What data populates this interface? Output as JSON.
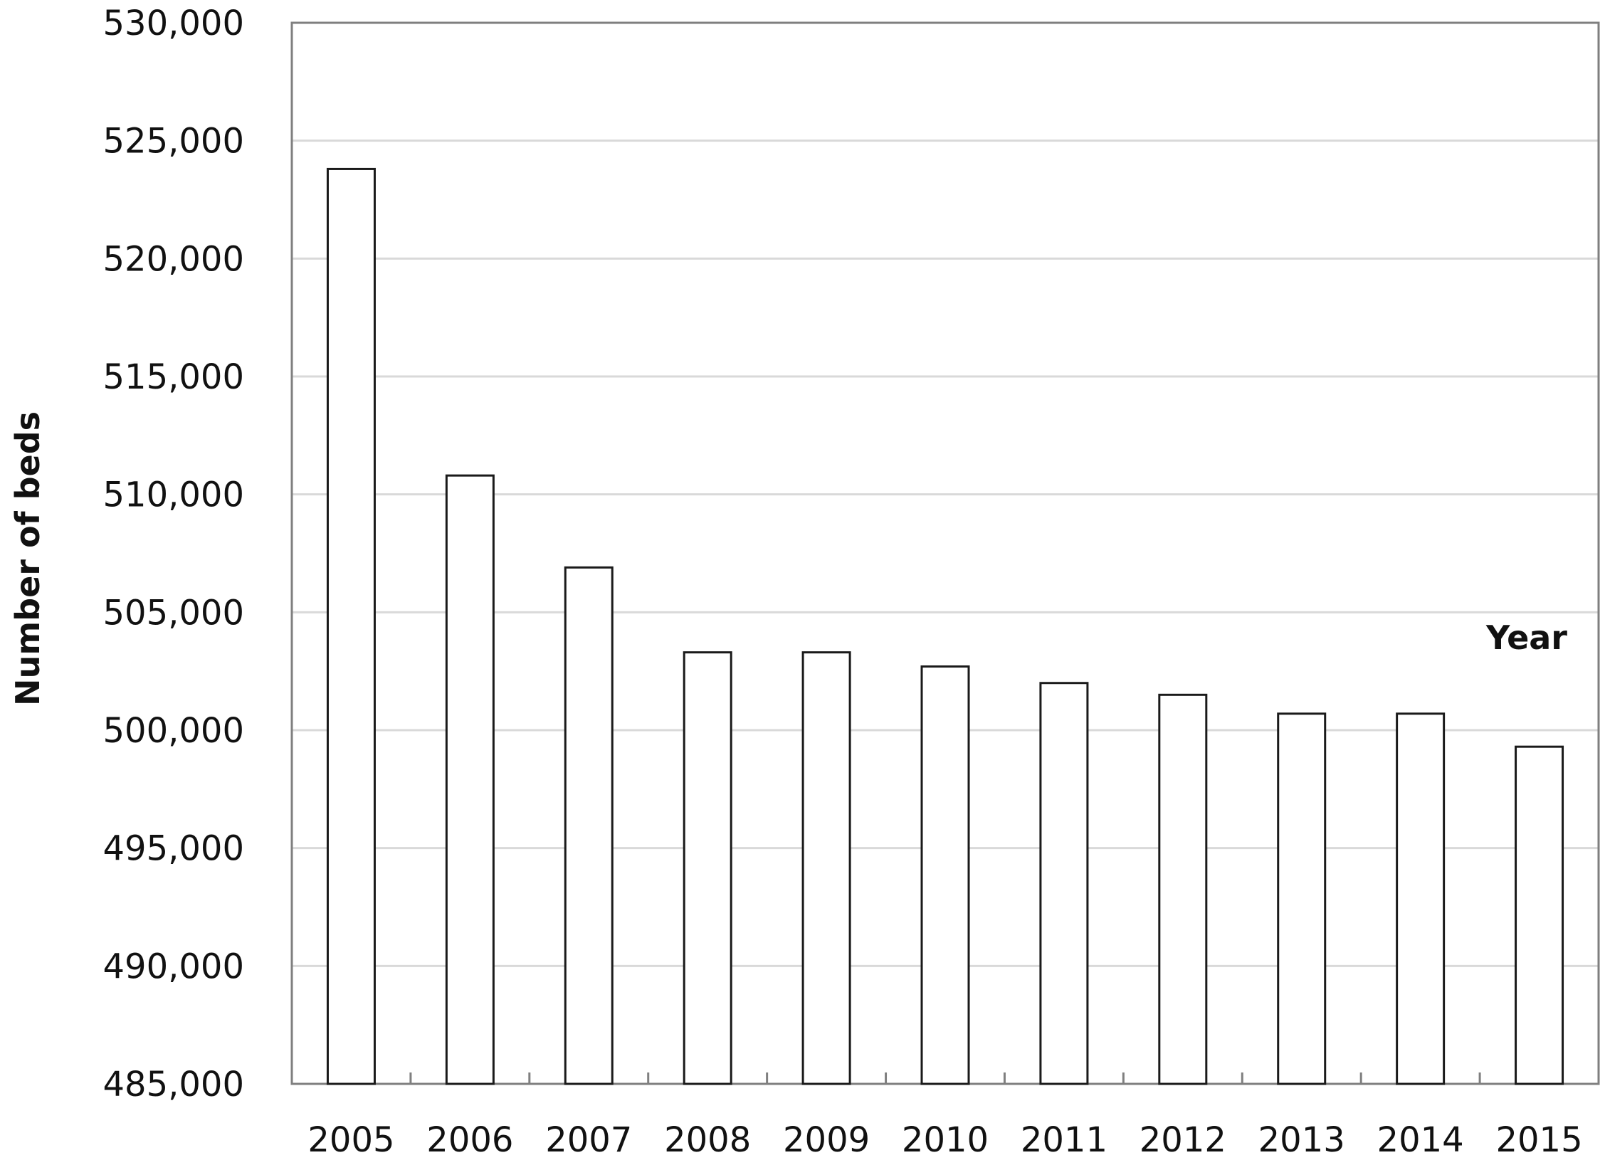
{
  "chart_data": {
    "type": "bar",
    "categories": [
      "2005",
      "2006",
      "2007",
      "2008",
      "2009",
      "2010",
      "2011",
      "2012",
      "2013",
      "2014",
      "2015"
    ],
    "values": [
      523800,
      510800,
      506900,
      503300,
      503300,
      502700,
      502000,
      501500,
      500700,
      500700,
      499300
    ],
    "xlabel": "Year",
    "ylabel": "Number of beds",
    "ylim": [
      485000,
      530000
    ],
    "yticks": [
      485000,
      490000,
      495000,
      500000,
      505000,
      510000,
      515000,
      520000,
      525000,
      530000
    ],
    "ytick_labels": [
      "485,000",
      "490,000",
      "495,000",
      "500,000",
      "505,000",
      "510,000",
      "515,000",
      "520,000",
      "525,000",
      "530,000"
    ],
    "grid": true,
    "bar_fill": "#ffffff",
    "bar_stroke": "#1a1a1a",
    "grid_color": "#d9d9d9",
    "axis_color": "#7f7f7f"
  }
}
